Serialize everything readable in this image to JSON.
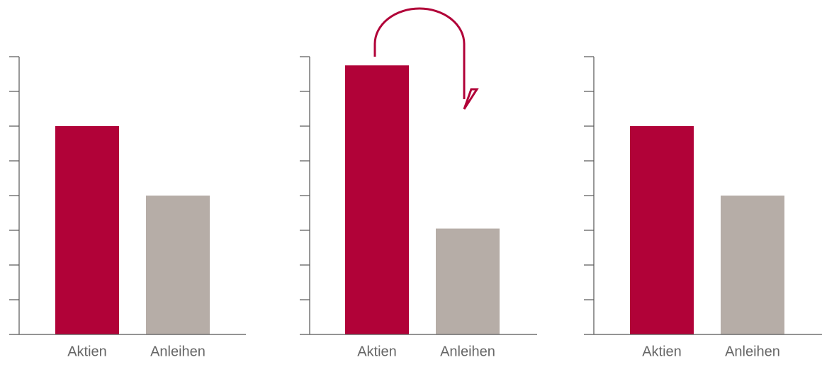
{
  "colors": {
    "aktien": "#B10238",
    "anleihen": "#B6ADA7",
    "axis": "#555555",
    "arrow": "#B10238",
    "label": "#666666"
  },
  "chart_data": [
    {
      "type": "bar",
      "categories": [
        "Aktien",
        "Anleihen"
      ],
      "values": [
        6,
        4
      ],
      "ylim": [
        0,
        8
      ],
      "yticks": [
        0,
        1,
        2,
        3,
        4,
        5,
        6,
        7,
        8
      ],
      "grid": false,
      "title": "",
      "xlabel": "",
      "ylabel": ""
    },
    {
      "type": "bar",
      "categories": [
        "Aktien",
        "Anleihen"
      ],
      "values": [
        7.75,
        3.05
      ],
      "ylim": [
        0,
        8
      ],
      "yticks": [
        0,
        1,
        2,
        3,
        4,
        5,
        6,
        7,
        8
      ],
      "grid": false,
      "title": "",
      "xlabel": "",
      "ylabel": "",
      "annotation": "arrow-from-aktien-to-anleihen"
    },
    {
      "type": "bar",
      "categories": [
        "Aktien",
        "Anleihen"
      ],
      "values": [
        6,
        4
      ],
      "ylim": [
        0,
        8
      ],
      "yticks": [
        0,
        1,
        2,
        3,
        4,
        5,
        6,
        7,
        8
      ],
      "grid": false,
      "title": "",
      "xlabel": "",
      "ylabel": ""
    }
  ]
}
